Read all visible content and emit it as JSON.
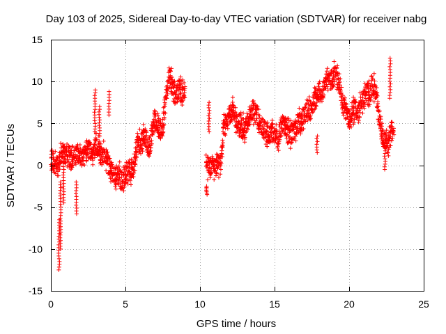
{
  "chart_data": {
    "type": "scatter",
    "title": "Day 103 of 2025, Sidereal Day-to-day VTEC variation (SDTVAR) for receiver nabg",
    "xlabel": "GPS time / hours",
    "ylabel": "SDTVAR / TECUs",
    "xlim": [
      0,
      25
    ],
    "ylim": [
      -15,
      15
    ],
    "xticks": [
      0,
      5,
      10,
      15,
      20,
      25
    ],
    "yticks": [
      -15,
      -10,
      -5,
      0,
      5,
      10,
      15
    ],
    "xtick_labels": [
      "0",
      "5",
      "10",
      "15",
      "20",
      "25"
    ],
    "ytick_labels": [
      "-15",
      "-10",
      "-5",
      "0",
      "5",
      "10",
      "15"
    ],
    "grid": true,
    "marker": "+",
    "color": "#ff0000",
    "series": [
      {
        "name": "SDTVAR",
        "trace": {
          "x": [
            0.0,
            0.2,
            0.4,
            0.5,
            0.6,
            0.8,
            1.0,
            1.2,
            1.4,
            1.6,
            1.8,
            2.0,
            2.2,
            2.4,
            2.6,
            2.8,
            3.0,
            3.2,
            3.4,
            3.6,
            3.8,
            4.0,
            4.2,
            4.4,
            4.6,
            4.8,
            5.0,
            5.2,
            5.4,
            5.6,
            5.8,
            6.0,
            6.2,
            6.4,
            6.6,
            6.8,
            7.0,
            7.2,
            7.4,
            7.6,
            7.8,
            8.0,
            8.2,
            8.4,
            8.6,
            8.8,
            9.0
          ],
          "y": [
            0.5,
            0.2,
            0.0,
            -0.5,
            0.8,
            1.5,
            1.0,
            1.2,
            0.8,
            1.0,
            1.5,
            1.2,
            1.0,
            1.5,
            2.0,
            1.5,
            2.5,
            2.0,
            1.0,
            1.5,
            0.5,
            -0.5,
            -1.0,
            -1.5,
            -1.0,
            -2.0,
            -1.5,
            -0.5,
            -1.0,
            0.0,
            3.0,
            2.5,
            3.5,
            3.0,
            2.0,
            4.0,
            5.5,
            5.0,
            4.0,
            6.0,
            9.5,
            10.5,
            9.0,
            8.0,
            9.5,
            8.5,
            9.0
          ]
        },
        "trace2": {
          "x": [
            10.4,
            10.6,
            10.8,
            11.0,
            11.2,
            11.4,
            11.6,
            11.8,
            12.0,
            12.2,
            12.4,
            12.6,
            12.8,
            13.0,
            13.2,
            13.4,
            13.6,
            13.8,
            14.0,
            14.2,
            14.4,
            14.6,
            14.8,
            15.0,
            15.2,
            15.4,
            15.6,
            15.8,
            16.0,
            16.2,
            16.4,
            16.6,
            16.8,
            17.0,
            17.2,
            17.4,
            17.6,
            17.8,
            18.0,
            18.2,
            18.4,
            18.6,
            18.8,
            19.0,
            19.2,
            19.4,
            19.6,
            19.8,
            20.0,
            20.2,
            20.4,
            20.6,
            20.8,
            21.0,
            21.2,
            21.4,
            21.6,
            21.8,
            22.0,
            22.2,
            22.4,
            22.6,
            22.8,
            23.0
          ],
          "y": [
            0.5,
            -0.5,
            0.0,
            -0.5,
            0.0,
            0.5,
            4.5,
            5.5,
            6.0,
            6.5,
            5.5,
            4.5,
            5.0,
            4.0,
            5.5,
            6.0,
            6.5,
            6.0,
            5.0,
            4.5,
            4.0,
            3.5,
            4.0,
            3.5,
            3.0,
            4.5,
            5.0,
            4.5,
            3.5,
            4.0,
            4.5,
            5.0,
            5.5,
            6.0,
            7.0,
            6.5,
            7.5,
            8.0,
            9.0,
            8.5,
            10.0,
            10.5,
            10.0,
            11.0,
            10.5,
            9.5,
            7.0,
            6.5,
            5.5,
            6.0,
            7.0,
            6.0,
            7.5,
            8.0,
            9.0,
            8.5,
            9.5,
            9.0,
            6.0,
            4.0,
            3.0,
            2.5,
            4.0,
            4.5
          ]
        },
        "spikes": [
          {
            "x": 0.55,
            "lo": -12.5,
            "hi": -6.5
          },
          {
            "x": 0.65,
            "lo": -10.0,
            "hi": -2.0
          },
          {
            "x": 0.85,
            "lo": -4.5,
            "hi": 0.5
          },
          {
            "x": 1.7,
            "lo": -5.8,
            "hi": -2.0
          },
          {
            "x": 2.95,
            "lo": 4.0,
            "hi": 9.0
          },
          {
            "x": 3.25,
            "lo": 3.5,
            "hi": 7.0
          },
          {
            "x": 3.9,
            "lo": 6.0,
            "hi": 8.8
          },
          {
            "x": 10.45,
            "lo": -3.5,
            "hi": -2.5
          },
          {
            "x": 10.6,
            "lo": 4.0,
            "hi": 7.5
          },
          {
            "x": 17.85,
            "lo": 1.5,
            "hi": 3.5
          },
          {
            "x": 22.4,
            "lo": -0.5,
            "hi": 3.0
          },
          {
            "x": 22.75,
            "lo": 8.0,
            "hi": 12.8
          }
        ]
      }
    ]
  }
}
